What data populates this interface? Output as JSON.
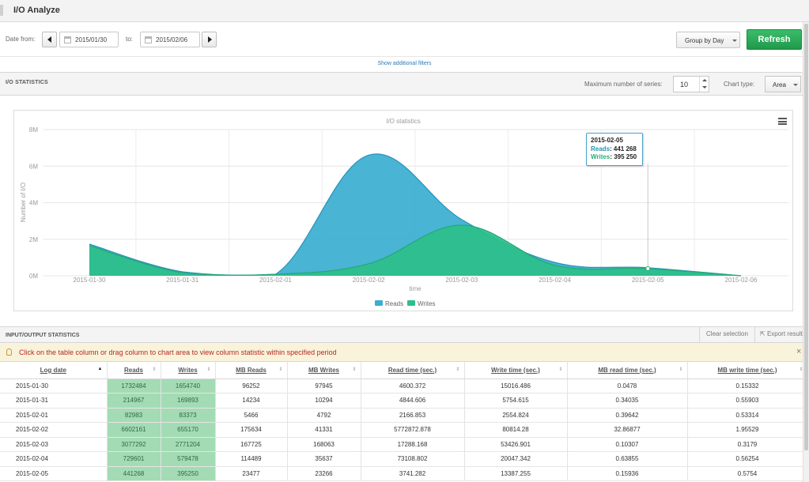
{
  "app": {
    "title": "I/O Analyze"
  },
  "filters": {
    "date_from_label": "Date from:",
    "date_from": "2015/01/30",
    "to_label": "to:",
    "date_to": "2015/02/06",
    "group_by": "Group by Day",
    "refresh_label": "Refresh",
    "show_more_label": "Show additional filters"
  },
  "io_stats": {
    "header": "I/O STATISTICS",
    "max_series_label": "Maximum number of series:",
    "max_series_value": "10",
    "chart_type_label": "Chart type:",
    "chart_type_value": "Area"
  },
  "chart_data": {
    "type": "area",
    "title": "I/O statistics",
    "xlabel": "time",
    "ylabel": "Number of I/O",
    "categories": [
      "2015-01-30",
      "2015-01-31",
      "2015-02-01",
      "2015-02-02",
      "2015-02-03",
      "2015-02-04",
      "2015-02-05",
      "2015-02-06"
    ],
    "y_ticks": [
      "0M",
      "2M",
      "4M",
      "6M",
      "8M"
    ],
    "ylim": [
      0,
      8000000
    ],
    "series": [
      {
        "name": "Reads",
        "color": "#3aaed0",
        "values": [
          1732484,
          214967,
          82983,
          6602161,
          3077292,
          729601,
          441268,
          0
        ]
      },
      {
        "name": "Writes",
        "color": "#2dbf89",
        "values": [
          1654740,
          169893,
          83373,
          655170,
          2771204,
          579478,
          395250,
          0
        ]
      }
    ],
    "legend": "bottom-center",
    "grid": true,
    "tooltip": {
      "date": "2015-02-05",
      "reads_label": "Reads",
      "reads_value": "441 268",
      "writes_label": "Writes",
      "writes_value": "395 250"
    }
  },
  "io_table": {
    "header": "INPUT/OUTPUT STATISTICS",
    "clear_label": "Clear selection",
    "export_label": "Export results",
    "notice": "Click on the table column or drag column to chart area to view column statistic within specified period",
    "columns": [
      "Log date",
      "Reads",
      "Writes",
      "MB Reads",
      "MB Writes",
      "Read time (sec.)",
      "Write time (sec.)",
      "MB read time (sec.)",
      "MB write time (sec.)"
    ],
    "rows": [
      [
        "2015-01-30",
        "1732484",
        "1654740",
        "96252",
        "97945",
        "4600.372",
        "15016.486",
        "0.0478",
        "0.15332"
      ],
      [
        "2015-01-31",
        "214967",
        "169893",
        "14234",
        "10294",
        "4844.606",
        "5754.615",
        "0.34035",
        "0.55903"
      ],
      [
        "2015-02-01",
        "82983",
        "83373",
        "5466",
        "4792",
        "2166.853",
        "2554.824",
        "0.39642",
        "0.53314"
      ],
      [
        "2015-02-02",
        "6602161",
        "655170",
        "175634",
        "41331",
        "5772872.878",
        "80814.28",
        "32.86877",
        "1.95529"
      ],
      [
        "2015-02-03",
        "3077292",
        "2771204",
        "167725",
        "168063",
        "17288.168",
        "53426.901",
        "0.10307",
        "0.3179"
      ],
      [
        "2015-02-04",
        "729601",
        "579478",
        "114489",
        "35637",
        "73108.802",
        "20047.342",
        "0.63855",
        "0.56254"
      ],
      [
        "2015-02-05",
        "441268",
        "395250",
        "23477",
        "23266",
        "3741.282",
        "13387.255",
        "0.15936",
        "0.5754"
      ]
    ]
  }
}
